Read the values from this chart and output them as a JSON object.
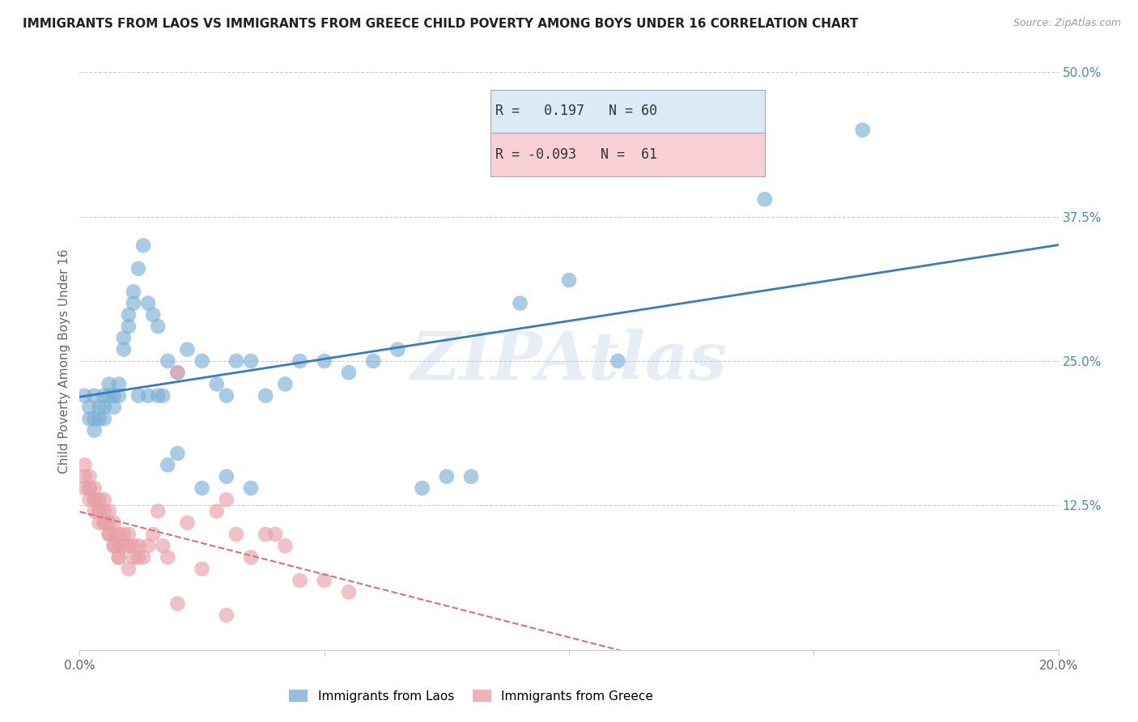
{
  "title": "IMMIGRANTS FROM LAOS VS IMMIGRANTS FROM GREECE CHILD POVERTY AMONG BOYS UNDER 16 CORRELATION CHART",
  "source": "Source: ZipAtlas.com",
  "ylabel": "Child Poverty Among Boys Under 16",
  "xlim": [
    0.0,
    0.2
  ],
  "ylim": [
    0.0,
    0.5
  ],
  "xticks": [
    0.0,
    0.05,
    0.1,
    0.15,
    0.2
  ],
  "xticklabels": [
    "0.0%",
    "",
    "",
    "",
    "20.0%"
  ],
  "yticks_right": [
    0.0,
    0.125,
    0.25,
    0.375,
    0.5
  ],
  "yticklabels_right": [
    "",
    "12.5%",
    "25.0%",
    "37.5%",
    "50.0%"
  ],
  "R_laos": 0.197,
  "N_laos": 60,
  "R_greece": -0.093,
  "N_greece": 61,
  "laos_color": "#7bafd4",
  "greece_color": "#e8a0a8",
  "laos_line_color": "#3a7abf",
  "greece_line_color": "#d87080",
  "watermark": "ZIPAtlas",
  "laos_x": [
    0.001,
    0.002,
    0.002,
    0.003,
    0.003,
    0.003,
    0.004,
    0.004,
    0.005,
    0.005,
    0.005,
    0.006,
    0.006,
    0.007,
    0.007,
    0.008,
    0.008,
    0.009,
    0.009,
    0.01,
    0.01,
    0.011,
    0.011,
    0.012,
    0.013,
    0.014,
    0.015,
    0.016,
    0.017,
    0.018,
    0.02,
    0.022,
    0.025,
    0.028,
    0.03,
    0.032,
    0.035,
    0.038,
    0.042,
    0.045,
    0.05,
    0.055,
    0.06,
    0.065,
    0.07,
    0.075,
    0.08,
    0.09,
    0.1,
    0.11,
    0.012,
    0.014,
    0.016,
    0.018,
    0.02,
    0.025,
    0.03,
    0.035,
    0.14,
    0.16
  ],
  "laos_y": [
    0.22,
    0.21,
    0.2,
    0.22,
    0.2,
    0.19,
    0.21,
    0.2,
    0.22,
    0.21,
    0.2,
    0.23,
    0.22,
    0.22,
    0.21,
    0.23,
    0.22,
    0.27,
    0.26,
    0.28,
    0.29,
    0.3,
    0.31,
    0.33,
    0.35,
    0.3,
    0.29,
    0.28,
    0.22,
    0.25,
    0.24,
    0.26,
    0.25,
    0.23,
    0.22,
    0.25,
    0.25,
    0.22,
    0.23,
    0.25,
    0.25,
    0.24,
    0.25,
    0.26,
    0.14,
    0.15,
    0.15,
    0.3,
    0.32,
    0.25,
    0.22,
    0.22,
    0.22,
    0.16,
    0.17,
    0.14,
    0.15,
    0.14,
    0.39,
    0.45
  ],
  "greece_x": [
    0.001,
    0.001,
    0.002,
    0.002,
    0.002,
    0.003,
    0.003,
    0.003,
    0.004,
    0.004,
    0.004,
    0.005,
    0.005,
    0.005,
    0.006,
    0.006,
    0.006,
    0.007,
    0.007,
    0.007,
    0.008,
    0.008,
    0.008,
    0.009,
    0.009,
    0.01,
    0.01,
    0.011,
    0.011,
    0.012,
    0.012,
    0.013,
    0.014,
    0.015,
    0.016,
    0.017,
    0.018,
    0.02,
    0.022,
    0.025,
    0.028,
    0.03,
    0.032,
    0.035,
    0.038,
    0.04,
    0.042,
    0.045,
    0.05,
    0.055,
    0.001,
    0.002,
    0.003,
    0.004,
    0.005,
    0.006,
    0.007,
    0.008,
    0.01,
    0.02,
    0.03
  ],
  "greece_y": [
    0.15,
    0.14,
    0.15,
    0.14,
    0.13,
    0.14,
    0.13,
    0.12,
    0.13,
    0.12,
    0.11,
    0.13,
    0.12,
    0.11,
    0.12,
    0.11,
    0.1,
    0.11,
    0.1,
    0.09,
    0.1,
    0.09,
    0.08,
    0.1,
    0.09,
    0.1,
    0.09,
    0.09,
    0.08,
    0.09,
    0.08,
    0.08,
    0.09,
    0.1,
    0.12,
    0.09,
    0.08,
    0.24,
    0.11,
    0.07,
    0.12,
    0.13,
    0.1,
    0.08,
    0.1,
    0.1,
    0.09,
    0.06,
    0.06,
    0.05,
    0.16,
    0.14,
    0.13,
    0.12,
    0.11,
    0.1,
    0.09,
    0.08,
    0.07,
    0.04,
    0.03
  ],
  "title_fontsize": 11,
  "axis_label_fontsize": 11,
  "tick_fontsize": 11
}
